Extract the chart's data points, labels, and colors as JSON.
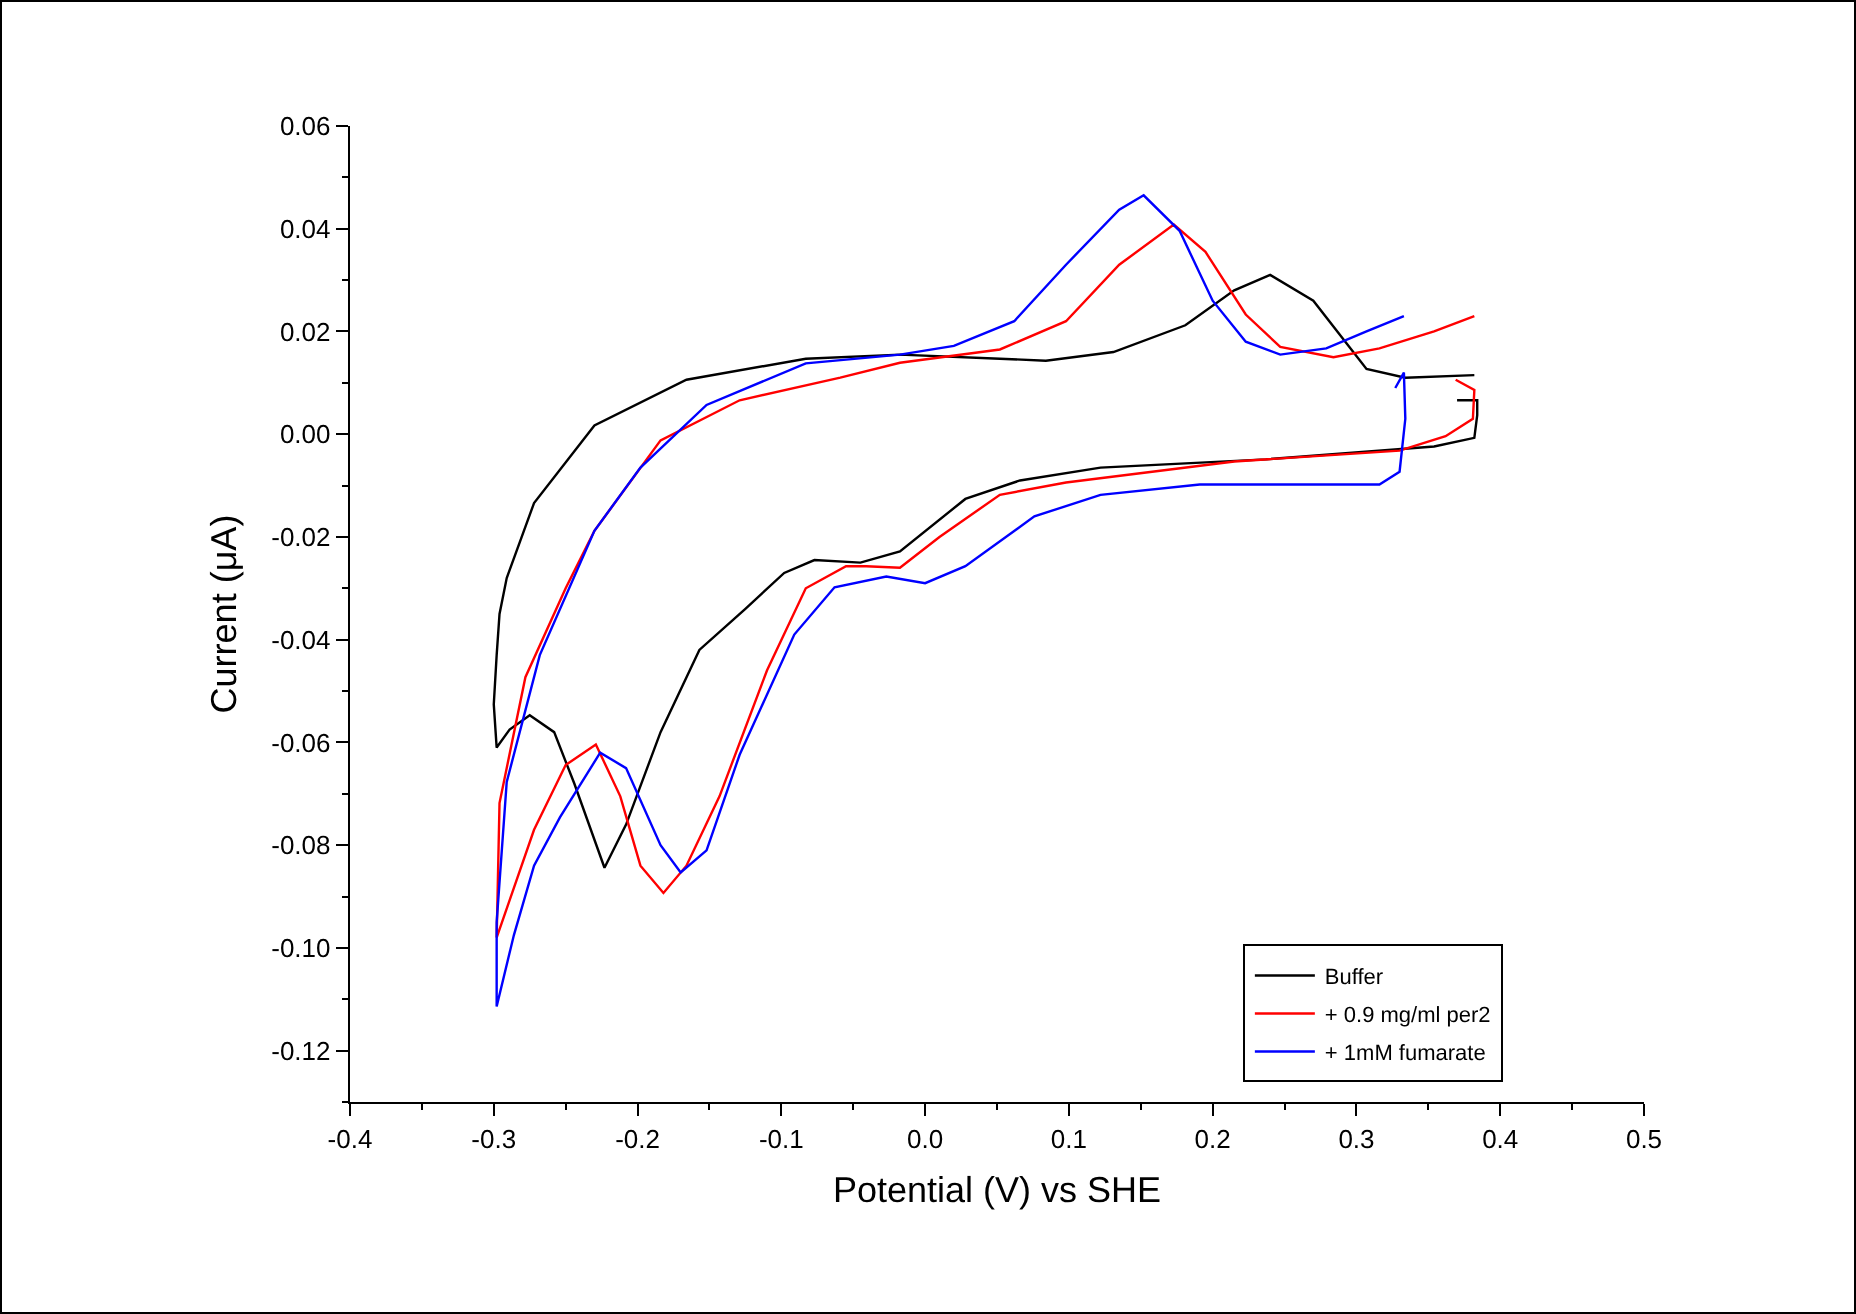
{
  "chart_data": {
    "type": "line",
    "xlabel": "Potential (V) vs SHE",
    "ylabel": "Current (μA)",
    "xlim": [
      -0.4,
      0.5
    ],
    "xticks": [
      {
        "value": -0.4,
        "label": "-0.4"
      },
      {
        "value": -0.3,
        "label": "-0.3"
      },
      {
        "value": -0.2,
        "label": "-0.2"
      },
      {
        "value": -0.1,
        "label": "-0.1"
      },
      {
        "value": 0,
        "label": "0.0"
      },
      {
        "value": 0.1,
        "label": "0.1"
      },
      {
        "value": 0.2,
        "label": "0.2"
      },
      {
        "value": 0.3,
        "label": "0.3"
      },
      {
        "value": 0.4,
        "label": "0.4"
      },
      {
        "value": 0.5,
        "label": "0.5"
      }
    ],
    "ylim": [
      -0.13,
      0.06
    ],
    "yticks": [
      {
        "value": -0.12,
        "label": "-0.12"
      },
      {
        "value": -0.1,
        "label": "-0.10"
      },
      {
        "value": -0.08,
        "label": "-0.08"
      },
      {
        "value": -0.06,
        "label": "-0.06"
      },
      {
        "value": -0.04,
        "label": "-0.04"
      },
      {
        "value": -0.02,
        "label": "-0.02"
      },
      {
        "value": 0,
        "label": "0.00"
      },
      {
        "value": 0.02,
        "label": "0.02"
      },
      {
        "value": 0.04,
        "label": "0.04"
      },
      {
        "value": 0.06,
        "label": "0.06"
      }
    ],
    "grid": false,
    "legend": "bottom right",
    "marker": "none",
    "line_style": "solid",
    "series": [
      {
        "name": "Buffer",
        "color": "#000000",
        "x": [
          0.37,
          0.384,
          0.384,
          0.382,
          0.354,
          0.237,
          0.122,
          0.066,
          0.028,
          -0.0175,
          -0.045,
          -0.077,
          -0.098,
          -0.125,
          -0.157,
          -0.184,
          -0.208,
          -0.223,
          -0.244,
          -0.258,
          -0.275,
          -0.289,
          -0.298,
          -0.3,
          -0.298,
          -0.296,
          -0.291,
          -0.272,
          -0.23,
          -0.166,
          -0.083,
          -0.0175,
          0.052,
          0.084,
          0.131,
          0.181,
          0.215,
          0.24,
          0.27,
          0.307,
          0.334,
          0.382
        ],
        "values": [
          0.0066,
          0.0066,
          0.0037,
          -0.0007,
          -0.0024,
          -0.0049,
          -0.0065,
          -0.009,
          -0.0126,
          -0.0228,
          -0.025,
          -0.0245,
          -0.027,
          -0.034,
          -0.042,
          -0.058,
          -0.076,
          -0.0844,
          -0.068,
          -0.058,
          -0.0547,
          -0.0575,
          -0.061,
          -0.0526,
          -0.043,
          -0.035,
          -0.028,
          -0.0134,
          0.0017,
          0.0106,
          0.0147,
          0.0155,
          0.0147,
          0.0143,
          0.016,
          0.0212,
          0.028,
          0.031,
          0.026,
          0.0127,
          0.011,
          0.0115
        ]
      },
      {
        "name": "+ 0.9 mg/ml per2",
        "color": "#ff0000",
        "x": [
          0.369,
          0.382,
          0.381,
          0.362,
          0.33,
          0.215,
          0.098,
          0.052,
          0.01,
          -0.0175,
          -0.041,
          -0.055,
          -0.083,
          -0.11,
          -0.143,
          -0.166,
          -0.182,
          -0.198,
          -0.212,
          -0.229,
          -0.25,
          -0.272,
          -0.298,
          -0.296,
          -0.278,
          -0.25,
          -0.23,
          -0.184,
          -0.129,
          -0.059,
          -0.0175,
          0.052,
          0.098,
          0.135,
          0.173,
          0.195,
          0.223,
          0.247,
          0.284,
          0.316,
          0.354,
          0.382
        ],
        "values": [
          0.0106,
          0.0086,
          0.003,
          -0.0004,
          -0.0032,
          -0.0053,
          -0.0094,
          -0.0118,
          -0.02,
          -0.026,
          -0.0257,
          -0.0257,
          -0.03,
          -0.046,
          -0.0705,
          -0.084,
          -0.0893,
          -0.084,
          -0.0705,
          -0.0604,
          -0.0644,
          -0.077,
          -0.098,
          -0.0718,
          -0.0473,
          -0.03,
          -0.0188,
          -0.0012,
          0.0066,
          0.011,
          0.0139,
          0.0165,
          0.022,
          0.033,
          0.0408,
          0.0355,
          0.0233,
          0.017,
          0.015,
          0.0167,
          0.02,
          0.023
        ]
      },
      {
        "name": "+ 1mM fumarate",
        "color": "#0000ff",
        "x": [
          0.327,
          0.333,
          0.334,
          0.33,
          0.316,
          0.191,
          0.122,
          0.076,
          0.028,
          0.0,
          -0.027,
          -0.063,
          -0.091,
          -0.129,
          -0.152,
          -0.17,
          -0.184,
          -0.208,
          -0.226,
          -0.254,
          -0.272,
          -0.286,
          -0.298,
          -0.298,
          -0.291,
          -0.268,
          -0.23,
          -0.198,
          -0.152,
          -0.083,
          -0.0175,
          0.02,
          0.062,
          0.098,
          0.135,
          0.152,
          0.177,
          0.2,
          0.223,
          0.247,
          0.279,
          0.307,
          0.333
        ],
        "values": [
          0.009,
          0.012,
          0.003,
          -0.0073,
          -0.0098,
          -0.0098,
          -0.0118,
          -0.016,
          -0.0257,
          -0.029,
          -0.0277,
          -0.0298,
          -0.039,
          -0.0624,
          -0.081,
          -0.0853,
          -0.08,
          -0.065,
          -0.062,
          -0.0746,
          -0.084,
          -0.0975,
          -0.1114,
          -0.095,
          -0.0677,
          -0.043,
          -0.0188,
          -0.0065,
          0.0057,
          0.0138,
          0.0155,
          0.0172,
          0.022,
          0.033,
          0.0437,
          0.0465,
          0.0396,
          0.026,
          0.018,
          0.0155,
          0.0167,
          0.02,
          0.023
        ]
      }
    ]
  }
}
